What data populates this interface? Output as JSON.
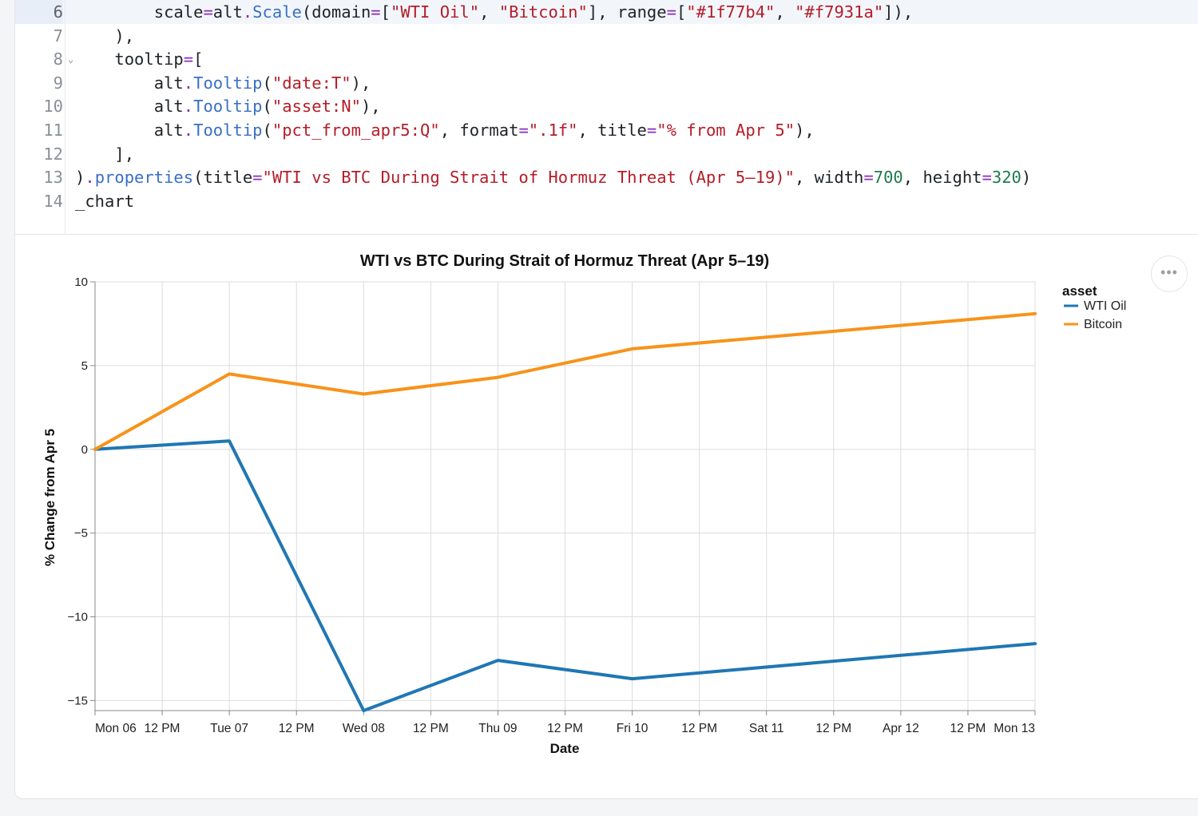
{
  "code": {
    "lines": [
      {
        "num": "6",
        "tokens": [
          [
            "p",
            "        scale"
          ],
          [
            "k",
            "="
          ],
          [
            "p",
            "alt"
          ],
          [
            "k",
            "."
          ],
          [
            "f",
            "Scale"
          ],
          [
            "p",
            "(domain"
          ],
          [
            "k",
            "="
          ],
          [
            "p",
            "["
          ],
          [
            "s",
            "\"WTI Oil\""
          ],
          [
            "p",
            ", "
          ],
          [
            "s",
            "\"Bitcoin\""
          ],
          [
            "p",
            "], range"
          ],
          [
            "k",
            "="
          ],
          [
            "p",
            "["
          ],
          [
            "s",
            "\"#1f77b4\""
          ],
          [
            "p",
            ", "
          ],
          [
            "s",
            "\"#f7931a\""
          ],
          [
            "p",
            "]),"
          ]
        ]
      },
      {
        "num": "7",
        "tokens": [
          [
            "p",
            "    ),"
          ]
        ]
      },
      {
        "num": "8",
        "fold": "⌄",
        "tokens": [
          [
            "p",
            "    tooltip"
          ],
          [
            "k",
            "="
          ],
          [
            "p",
            "["
          ]
        ]
      },
      {
        "num": "9",
        "tokens": [
          [
            "p",
            "        alt"
          ],
          [
            "k",
            "."
          ],
          [
            "f",
            "Tooltip"
          ],
          [
            "p",
            "("
          ],
          [
            "s",
            "\"date:T\""
          ],
          [
            "p",
            "),"
          ]
        ]
      },
      {
        "num": "10",
        "tokens": [
          [
            "p",
            "        alt"
          ],
          [
            "k",
            "."
          ],
          [
            "f",
            "Tooltip"
          ],
          [
            "p",
            "("
          ],
          [
            "s",
            "\"asset:N\""
          ],
          [
            "p",
            "),"
          ]
        ]
      },
      {
        "num": "11",
        "tokens": [
          [
            "p",
            "        alt"
          ],
          [
            "k",
            "."
          ],
          [
            "f",
            "Tooltip"
          ],
          [
            "p",
            "("
          ],
          [
            "s",
            "\"pct_from_apr5:Q\""
          ],
          [
            "p",
            ", format"
          ],
          [
            "k",
            "="
          ],
          [
            "s",
            "\".1f\""
          ],
          [
            "p",
            ", title"
          ],
          [
            "k",
            "="
          ],
          [
            "s",
            "\"% from Apr 5\""
          ],
          [
            "p",
            "),"
          ]
        ]
      },
      {
        "num": "12",
        "tokens": [
          [
            "p",
            "    ],"
          ]
        ]
      },
      {
        "num": "13",
        "tokens": [
          [
            "p",
            ")"
          ],
          [
            "k",
            "."
          ],
          [
            "f",
            "properties"
          ],
          [
            "p",
            "(title"
          ],
          [
            "k",
            "="
          ],
          [
            "s",
            "\"WTI vs BTC During Strait of Hormuz Threat (Apr 5–19)\""
          ],
          [
            "p",
            ", width"
          ],
          [
            "k",
            "="
          ],
          [
            "n",
            "700"
          ],
          [
            "p",
            ", height"
          ],
          [
            "k",
            "="
          ],
          [
            "n",
            "320"
          ],
          [
            "p",
            ")"
          ]
        ]
      },
      {
        "num": "14",
        "tokens": [
          [
            "p",
            "_chart"
          ]
        ]
      }
    ]
  },
  "chart_actions": {
    "label": "•••"
  },
  "chart_data": {
    "type": "line",
    "title": "WTI vs BTC During Strait of Hormuz Threat (Apr 5–19)",
    "xlabel": "Date",
    "ylabel": "% Change from Apr 5",
    "ylim": [
      -15.6,
      10
    ],
    "yticks": [
      10,
      5,
      0,
      -5,
      -10,
      -15
    ],
    "ytick_labels": [
      "10",
      "5",
      "0",
      "−5",
      "−10",
      "−15"
    ],
    "xlim": [
      "2025-04-06T00:00",
      "2025-04-13T00:00"
    ],
    "xticks": [
      "Mon 06",
      "12 PM",
      "Tue 07",
      "12 PM",
      "Wed 08",
      "12 PM",
      "Thu 09",
      "12 PM",
      "Fri 10",
      "12 PM",
      "Sat 11",
      "12 PM",
      "Apr 12",
      "12 PM",
      "Mon 13"
    ],
    "grid": true,
    "legend": {
      "title": "asset",
      "placement": "top-right"
    },
    "series": [
      {
        "name": "WTI Oil",
        "color": "#1f77b4",
        "x": [
          "2025-04-06T00:00",
          "2025-04-07T00:00",
          "2025-04-08T00:00",
          "2025-04-09T00:00",
          "2025-04-10T00:00",
          "2025-04-13T00:00"
        ],
        "values": [
          0,
          0.5,
          -15.6,
          -12.6,
          -13.7,
          -11.6
        ]
      },
      {
        "name": "Bitcoin",
        "color": "#f7931a",
        "x": [
          "2025-04-06T00:00",
          "2025-04-07T00:00",
          "2025-04-08T00:00",
          "2025-04-09T00:00",
          "2025-04-10T00:00",
          "2025-04-13T00:00"
        ],
        "values": [
          0,
          4.5,
          3.3,
          4.3,
          6.0,
          8.1
        ]
      }
    ]
  }
}
